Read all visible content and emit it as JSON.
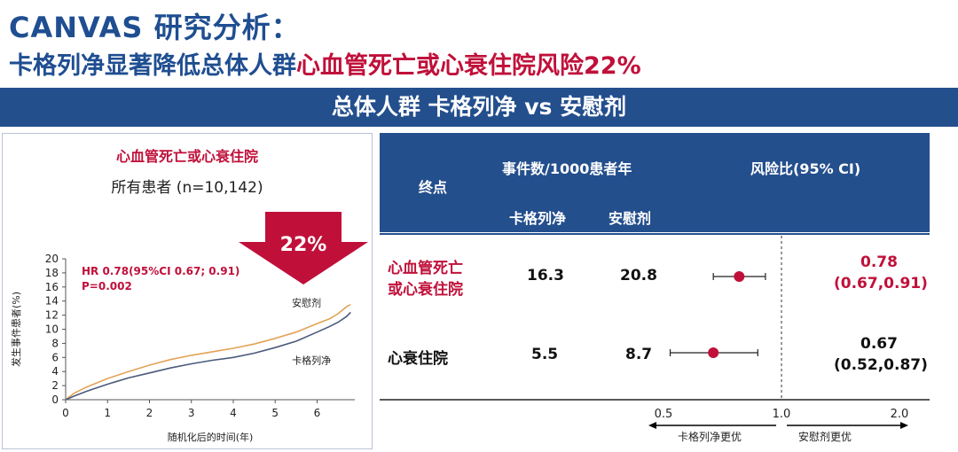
{
  "header": {
    "title": "CANVAS 研究分析：",
    "subtitle_part1": "卡格列净显著降低总体人群",
    "subtitle_part2": "心血管死亡或心衰住院风险",
    "subtitle_part3": "22%"
  },
  "banner": "总体人群 卡格列净 vs 安慰剂",
  "km_panel": {
    "title": "心血管死亡或心衰住院",
    "subtitle": "所有患者 (n=10,142)",
    "arrow_label": "22%",
    "hr_line1": "HR 0.78(95%CI 0.67; 0.91)",
    "hr_line2": "P=0.002",
    "colors": {
      "placebo": "#e3a357",
      "canagliflozin": "#4a5a7c",
      "accent": "#c0103a"
    }
  },
  "chart_data": [
    {
      "type": "line",
      "xlabel": "随机化后的时间(年)",
      "ylabel": "发生事件患者(%)",
      "xlim": [
        0,
        6.9
      ],
      "ylim": [
        0,
        20
      ],
      "xticks": [
        "0",
        "1",
        "2",
        "3",
        "4",
        "5",
        "6"
      ],
      "yticks": [
        "0",
        "2",
        "4",
        "6",
        "8",
        "10",
        "12",
        "14",
        "16",
        "18",
        "20"
      ],
      "series": [
        {
          "name": "安慰剂",
          "x": [
            0,
            0.2,
            0.5,
            1.0,
            1.5,
            2.0,
            2.5,
            3.0,
            3.5,
            4.0,
            4.5,
            5.0,
            5.5,
            6.0,
            6.3,
            6.5,
            6.7,
            6.8
          ],
          "values": [
            0,
            0.9,
            1.8,
            3.0,
            4.0,
            4.9,
            5.7,
            6.3,
            6.8,
            7.3,
            7.9,
            8.7,
            9.6,
            10.8,
            11.5,
            12.2,
            13.2,
            13.5
          ]
        },
        {
          "name": "卡格列净",
          "x": [
            0,
            0.2,
            0.5,
            1.0,
            1.5,
            2.0,
            2.5,
            3.0,
            3.5,
            4.0,
            4.5,
            5.0,
            5.5,
            6.0,
            6.3,
            6.5,
            6.7,
            6.8
          ],
          "values": [
            0,
            0.5,
            1.2,
            2.2,
            3.1,
            3.8,
            4.5,
            5.1,
            5.6,
            6.0,
            6.6,
            7.4,
            8.3,
            9.6,
            10.4,
            11.0,
            11.8,
            12.4
          ]
        }
      ]
    },
    {
      "type": "scatter",
      "xlabel": "",
      "ylabel": "",
      "xlim": [
        0.45,
        2.15
      ],
      "x_scale": "log",
      "xticks": [
        "0.5",
        "1.0",
        "2.0"
      ],
      "reference_line": 1.0,
      "direction_left": "卡格列净更优",
      "direction_right": "安慰剂更优",
      "points": [
        {
          "label": "心血管死亡或心衰住院",
          "hr": 0.78,
          "ci": [
            0.67,
            0.91
          ],
          "color": "#c0103a"
        },
        {
          "label": "心衰住院",
          "hr": 0.67,
          "ci": [
            0.52,
            0.87
          ],
          "color": "#c0103a"
        }
      ]
    }
  ],
  "table": {
    "col_endpoint": "终点",
    "col_events": "事件数/1000患者年",
    "col_drug": "卡格列净",
    "col_placebo": "安慰剂",
    "col_hr": "风险比(95% CI)",
    "rows": [
      {
        "endpoint_line1": "心血管死亡",
        "endpoint_line2": "或心衰住院",
        "drug": "16.3",
        "placebo": "20.8",
        "hr": "0.78",
        "ci": "(0.67,0.91)"
      },
      {
        "endpoint_line1": "心衰住院",
        "endpoint_line2": "",
        "drug": "5.5",
        "placebo": "8.7",
        "hr": "0.67",
        "ci": "(0.52,0.87)"
      }
    ]
  }
}
